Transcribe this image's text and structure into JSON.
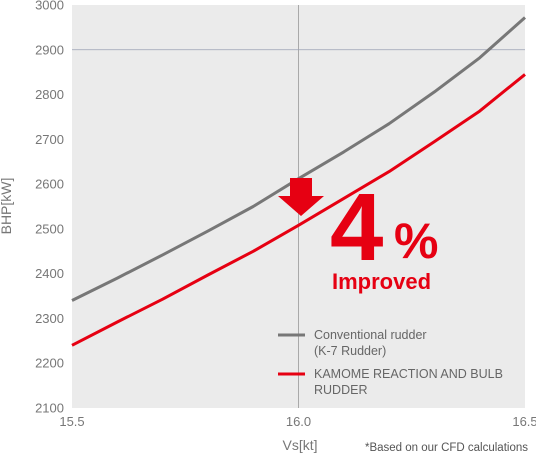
{
  "chart_data": {
    "type": "line",
    "xlabel": "Vs[kt]",
    "ylabel": "BHP[kW]",
    "xlim": [
      15.5,
      16.5
    ],
    "ylim": [
      2100,
      3000
    ],
    "x_ticks": [
      "15.5",
      "16.0",
      "16.5"
    ],
    "y_ticks": [
      "2100",
      "2200",
      "2300",
      "2400",
      "2500",
      "2600",
      "2700",
      "2800",
      "2900",
      "3000"
    ],
    "grid": "x at 16.0, y at 2900",
    "legend_position": "bottom-right",
    "series": [
      {
        "name": "Conventional rudder (K-7 Rudder)",
        "legend_lines": [
          "Conventional rudder",
          "(K-7 Rudder)"
        ],
        "color": "#777777",
        "x": [
          15.5,
          15.6,
          15.7,
          15.8,
          15.9,
          16.0,
          16.1,
          16.2,
          16.3,
          16.4,
          16.5
        ],
        "y": [
          2340,
          2390,
          2442,
          2495,
          2550,
          2612,
          2672,
          2735,
          2806,
          2882,
          2972
        ]
      },
      {
        "name": "KAMOME REACTION AND BULB RUDDER",
        "legend_lines": [
          "KAMOME REACTION AND BULB",
          "RUDDER"
        ],
        "color": "#e60012",
        "x": [
          15.5,
          15.6,
          15.7,
          15.8,
          15.9,
          16.0,
          16.1,
          16.2,
          16.3,
          16.4,
          16.5
        ],
        "y": [
          2240,
          2292,
          2343,
          2397,
          2450,
          2508,
          2568,
          2628,
          2695,
          2763,
          2845
        ]
      }
    ],
    "annotation": {
      "value": "4",
      "unit": "%",
      "text": "Improved",
      "color": "#e60012",
      "arrow": "down-arrow-icon"
    },
    "note": "*Based on our CFD calculations"
  }
}
